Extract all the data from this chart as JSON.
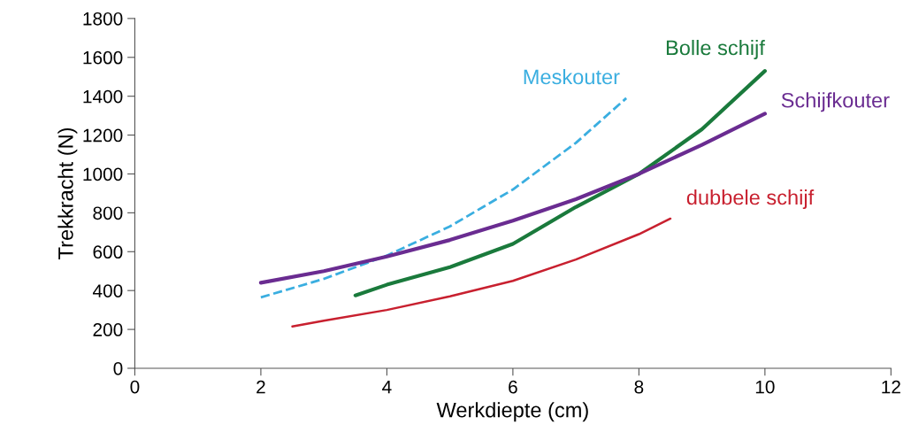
{
  "chart_data": {
    "type": "line",
    "xlabel": "Werkdiepte (cm)",
    "ylabel": "Trekkracht (N)",
    "xlim": [
      0,
      12
    ],
    "xticks": [
      0,
      2,
      4,
      6,
      8,
      10,
      12
    ],
    "ylim": [
      0,
      1800
    ],
    "yticks": [
      0,
      200,
      400,
      600,
      800,
      1000,
      1200,
      1400,
      1600,
      1800
    ],
    "grid": false,
    "legend": false,
    "series": [
      {
        "name": "Meskouter",
        "color": "#3aaee0",
        "line_style": "dashed",
        "x": [
          2,
          3,
          4,
          5,
          6,
          7,
          7.8
        ],
        "values": [
          365,
          460,
          580,
          730,
          920,
          1160,
          1390
        ]
      },
      {
        "name": "Bolle schijf",
        "color": "#1a7a3c",
        "line_style": "solid",
        "x": [
          3.5,
          4,
          5,
          6,
          7,
          8,
          9,
          10
        ],
        "values": [
          375,
          430,
          520,
          640,
          830,
          1000,
          1230,
          1530
        ]
      },
      {
        "name": "Schijfkouter",
        "color": "#6a2c91",
        "line_style": "solid",
        "x": [
          2,
          3,
          4,
          5,
          6,
          7,
          8,
          9,
          10
        ],
        "values": [
          440,
          500,
          575,
          660,
          760,
          870,
          1000,
          1150,
          1310
        ]
      },
      {
        "name": "dubbele schijf",
        "color": "#c8202f",
        "line_style": "solid",
        "x": [
          2.5,
          3,
          4,
          5,
          6,
          7,
          8,
          8.5
        ],
        "values": [
          215,
          245,
          300,
          370,
          450,
          560,
          690,
          770
        ]
      }
    ]
  }
}
